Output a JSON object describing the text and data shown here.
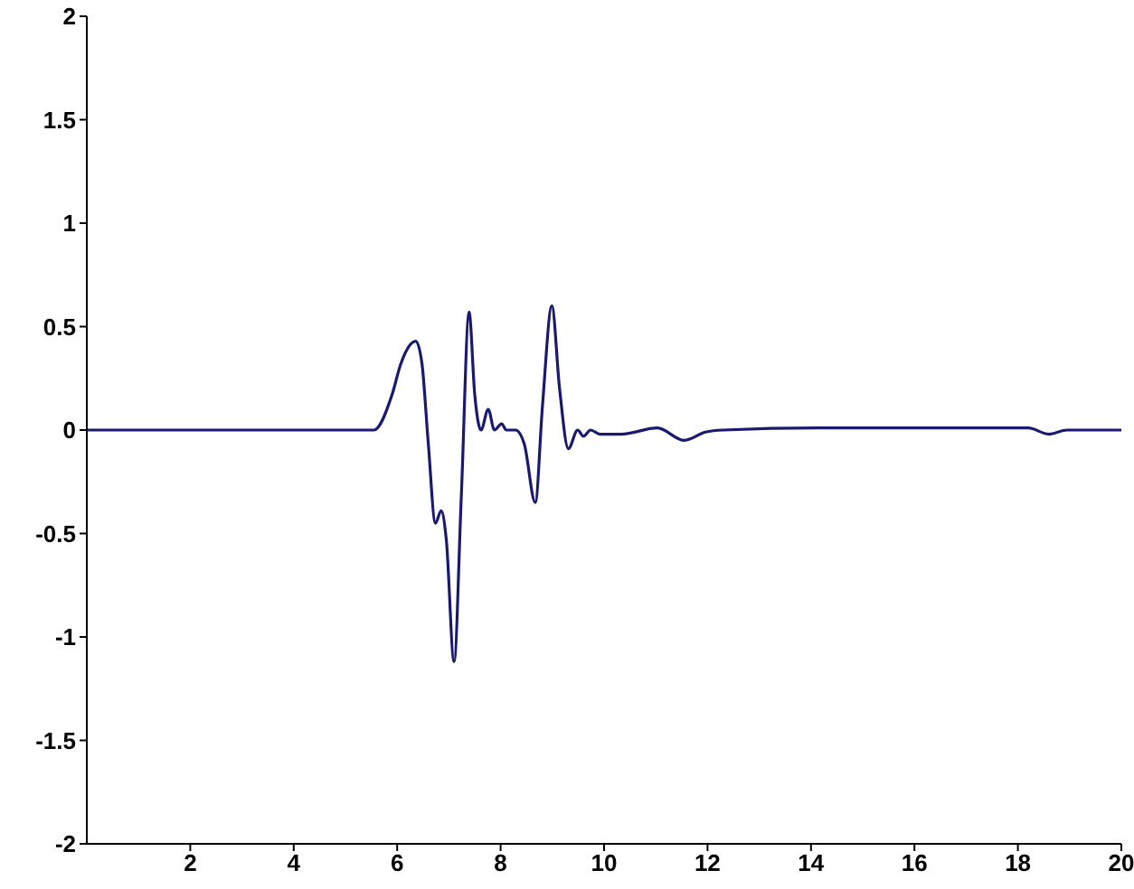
{
  "chart_data": {
    "type": "line",
    "x": [
      0,
      5.55,
      5.9,
      6.07,
      6.36,
      6.48,
      6.6,
      6.74,
      6.85,
      6.95,
      7.1,
      7.24,
      7.39,
      7.5,
      7.62,
      7.76,
      7.88,
      8.02,
      8.11,
      8.29,
      8.46,
      8.67,
      8.81,
      8.99,
      9.14,
      9.31,
      9.49,
      9.6,
      9.74,
      9.92,
      10.33,
      11.03,
      11.55,
      11.96,
      12.3,
      14.16,
      18.2,
      18.6,
      18.95,
      20
    ],
    "series": [
      {
        "color": "#191970",
        "values": [
          0,
          0,
          0.17,
          0.32,
          0.43,
          0.32,
          -0.06,
          -0.45,
          -0.39,
          -0.53,
          -1.12,
          -0.32,
          0.57,
          0.17,
          0,
          0.1,
          0,
          0.03,
          0,
          0,
          -0.07,
          -0.35,
          0.12,
          0.6,
          0.2,
          -0.09,
          0,
          -0.03,
          0,
          -0.02,
          -0.02,
          0.01,
          -0.05,
          -0.01,
          0,
          0.01,
          0.01,
          -0.02,
          0,
          0
        ]
      }
    ],
    "xlim": [
      0,
      20
    ],
    "xticks": [
      2,
      4,
      6,
      8,
      10,
      12,
      14,
      16,
      18,
      20
    ],
    "ylim": [
      -2,
      2
    ],
    "yticks": [
      -2,
      -1.5,
      -1,
      -0.5,
      0,
      0.5,
      1,
      1.5,
      2
    ],
    "grid": false,
    "legend": false,
    "marker": "none",
    "line_style": "solid"
  }
}
